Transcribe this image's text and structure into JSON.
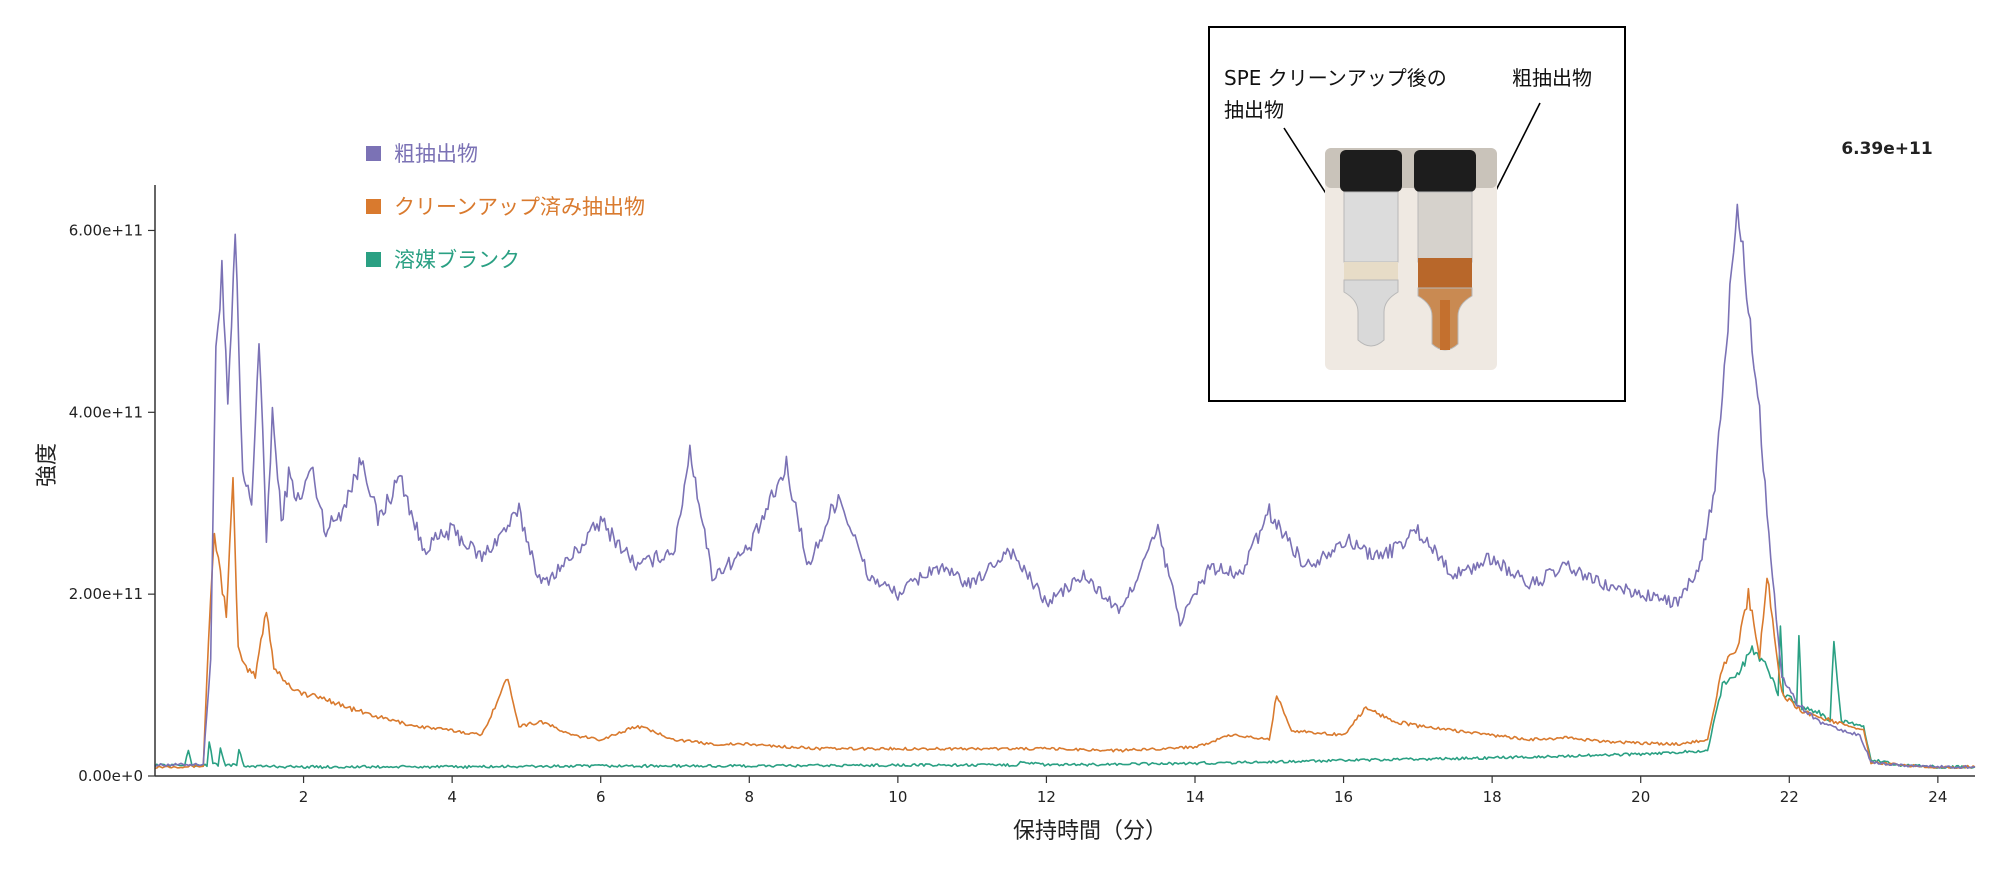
{
  "chart_data": {
    "type": "line",
    "xlabel": "保持時間（分）",
    "ylabel": "強度",
    "xlim": [
      0,
      24.5
    ],
    "ylim": [
      0,
      650000000000
    ],
    "x_ticks": [
      2,
      4,
      6,
      8,
      10,
      12,
      14,
      16,
      18,
      20,
      22,
      24
    ],
    "x_tick_labels": [
      "2",
      "4",
      "6",
      "8",
      "10",
      "12",
      "14",
      "16",
      "18",
      "20",
      "22",
      "24"
    ],
    "y_ticks": [
      0,
      200000000000,
      400000000000,
      600000000000
    ],
    "y_tick_labels": [
      "0.00e+0",
      "2.00e+11",
      "4.00e+11",
      "6.00e+11"
    ],
    "max_label": "6.39e+11",
    "grid": false,
    "legend_position": "top-left",
    "legend": [
      {
        "name": "粗抽出物",
        "color": "#7b72b5"
      },
      {
        "name": "クリーンアップ済み抽出物",
        "color": "#d97a2e"
      },
      {
        "name": "溶媒ブランク",
        "color": "#2aa083"
      }
    ],
    "series": [
      {
        "name": "粗抽出物",
        "color": "#7b72b5",
        "x": [
          0.0,
          0.65,
          0.75,
          0.82,
          0.9,
          0.98,
          1.08,
          1.18,
          1.3,
          1.4,
          1.5,
          1.58,
          1.7,
          1.8,
          1.95,
          2.1,
          2.3,
          2.5,
          2.8,
          3.0,
          3.3,
          3.6,
          4.0,
          4.4,
          4.9,
          5.2,
          5.6,
          6.0,
          6.5,
          7.0,
          7.2,
          7.5,
          8.0,
          8.5,
          8.8,
          9.2,
          9.6,
          10.0,
          10.5,
          11.0,
          11.5,
          12.0,
          12.5,
          13.0,
          13.5,
          13.8,
          14.2,
          14.6,
          15.0,
          15.5,
          16.0,
          16.5,
          17.0,
          17.5,
          18.0,
          18.5,
          19.0,
          19.5,
          20.0,
          20.5,
          20.8,
          21.0,
          21.15,
          21.3,
          21.45,
          21.6,
          21.75,
          21.9,
          22.1,
          22.4,
          22.7,
          22.95,
          23.1,
          23.5,
          24.0,
          24.5
        ],
        "values": [
          12000000000,
          13000000000,
          130000000000,
          470000000000,
          560000000000,
          400000000000,
          590000000000,
          330000000000,
          300000000000,
          480000000000,
          260000000000,
          400000000000,
          280000000000,
          330000000000,
          300000000000,
          340000000000,
          270000000000,
          290000000000,
          350000000000,
          280000000000,
          330000000000,
          250000000000,
          270000000000,
          240000000000,
          290000000000,
          210000000000,
          240000000000,
          280000000000,
          230000000000,
          250000000000,
          360000000000,
          220000000000,
          250000000000,
          340000000000,
          230000000000,
          310000000000,
          220000000000,
          200000000000,
          230000000000,
          210000000000,
          250000000000,
          190000000000,
          220000000000,
          180000000000,
          270000000000,
          170000000000,
          230000000000,
          220000000000,
          290000000000,
          230000000000,
          260000000000,
          240000000000,
          270000000000,
          220000000000,
          240000000000,
          210000000000,
          230000000000,
          210000000000,
          200000000000,
          190000000000,
          230000000000,
          320000000000,
          470000000000,
          639000000000,
          520000000000,
          400000000000,
          240000000000,
          110000000000,
          80000000000,
          60000000000,
          50000000000,
          45000000000,
          15000000000,
          12000000000,
          10000000000,
          10000000000
        ]
      },
      {
        "name": "クリーンアップ済み抽出物",
        "color": "#d97a2e",
        "x": [
          0.0,
          0.65,
          0.72,
          0.8,
          0.88,
          0.96,
          1.05,
          1.12,
          1.2,
          1.35,
          1.5,
          1.6,
          1.8,
          2.0,
          2.3,
          2.6,
          3.0,
          3.5,
          4.0,
          4.4,
          4.75,
          4.9,
          5.2,
          5.6,
          6.0,
          6.5,
          7.0,
          7.5,
          8.0,
          8.5,
          9.0,
          9.5,
          10.0,
          11.0,
          12.0,
          13.0,
          14.0,
          14.5,
          15.0,
          15.1,
          15.3,
          16.0,
          16.3,
          16.7,
          17.0,
          17.5,
          18.0,
          18.5,
          19.0,
          19.5,
          20.0,
          20.5,
          20.9,
          21.1,
          21.3,
          21.45,
          21.6,
          21.7,
          21.9,
          22.2,
          22.6,
          23.0,
          23.1,
          23.5,
          24.0,
          24.5
        ],
        "values": [
          10000000000,
          11000000000,
          150000000000,
          270000000000,
          220000000000,
          180000000000,
          320000000000,
          140000000000,
          120000000000,
          110000000000,
          185000000000,
          120000000000,
          100000000000,
          90000000000,
          85000000000,
          75000000000,
          65000000000,
          55000000000,
          50000000000,
          45000000000,
          108000000000,
          55000000000,
          60000000000,
          45000000000,
          40000000000,
          55000000000,
          40000000000,
          35000000000,
          35000000000,
          32000000000,
          30000000000,
          30000000000,
          30000000000,
          30000000000,
          30000000000,
          28000000000,
          32000000000,
          45000000000,
          40000000000,
          90000000000,
          50000000000,
          45000000000,
          75000000000,
          60000000000,
          55000000000,
          50000000000,
          45000000000,
          40000000000,
          42000000000,
          38000000000,
          36000000000,
          35000000000,
          40000000000,
          120000000000,
          140000000000,
          200000000000,
          130000000000,
          220000000000,
          90000000000,
          70000000000,
          60000000000,
          50000000000,
          15000000000,
          12000000000,
          10000000000,
          10000000000
        ]
      },
      {
        "name": "溶媒ブランク",
        "color": "#2aa083",
        "x": [
          0.0,
          0.4,
          0.45,
          0.5,
          0.7,
          0.73,
          0.78,
          0.85,
          0.88,
          0.95,
          1.1,
          1.13,
          1.2,
          2.0,
          4.0,
          6.0,
          8.0,
          10.0,
          11.6,
          11.65,
          12.0,
          14.0,
          16.0,
          18.0,
          20.0,
          20.9,
          21.1,
          21.3,
          21.5,
          21.7,
          21.85,
          21.88,
          21.92,
          22.1,
          22.13,
          22.17,
          22.4,
          22.55,
          22.6,
          22.7,
          23.0,
          23.1,
          23.5,
          24.0,
          24.5
        ],
        "values": [
          12000000000,
          12000000000,
          28000000000,
          12000000000,
          12000000000,
          38000000000,
          14000000000,
          12000000000,
          30000000000,
          12000000000,
          12000000000,
          28000000000,
          11000000000,
          10000000000,
          10000000000,
          11000000000,
          11000000000,
          12000000000,
          12000000000,
          16000000000,
          12000000000,
          14000000000,
          17000000000,
          20000000000,
          24000000000,
          28000000000,
          100000000000,
          110000000000,
          140000000000,
          120000000000,
          90000000000,
          170000000000,
          90000000000,
          80000000000,
          155000000000,
          75000000000,
          70000000000,
          60000000000,
          150000000000,
          60000000000,
          55000000000,
          18000000000,
          12000000000,
          10000000000,
          10000000000
        ]
      }
    ]
  },
  "inset": {
    "label_left_line1": "SPE クリーンアップ後の",
    "label_left_line2": "抽出物",
    "label_right": "粗抽出物"
  }
}
